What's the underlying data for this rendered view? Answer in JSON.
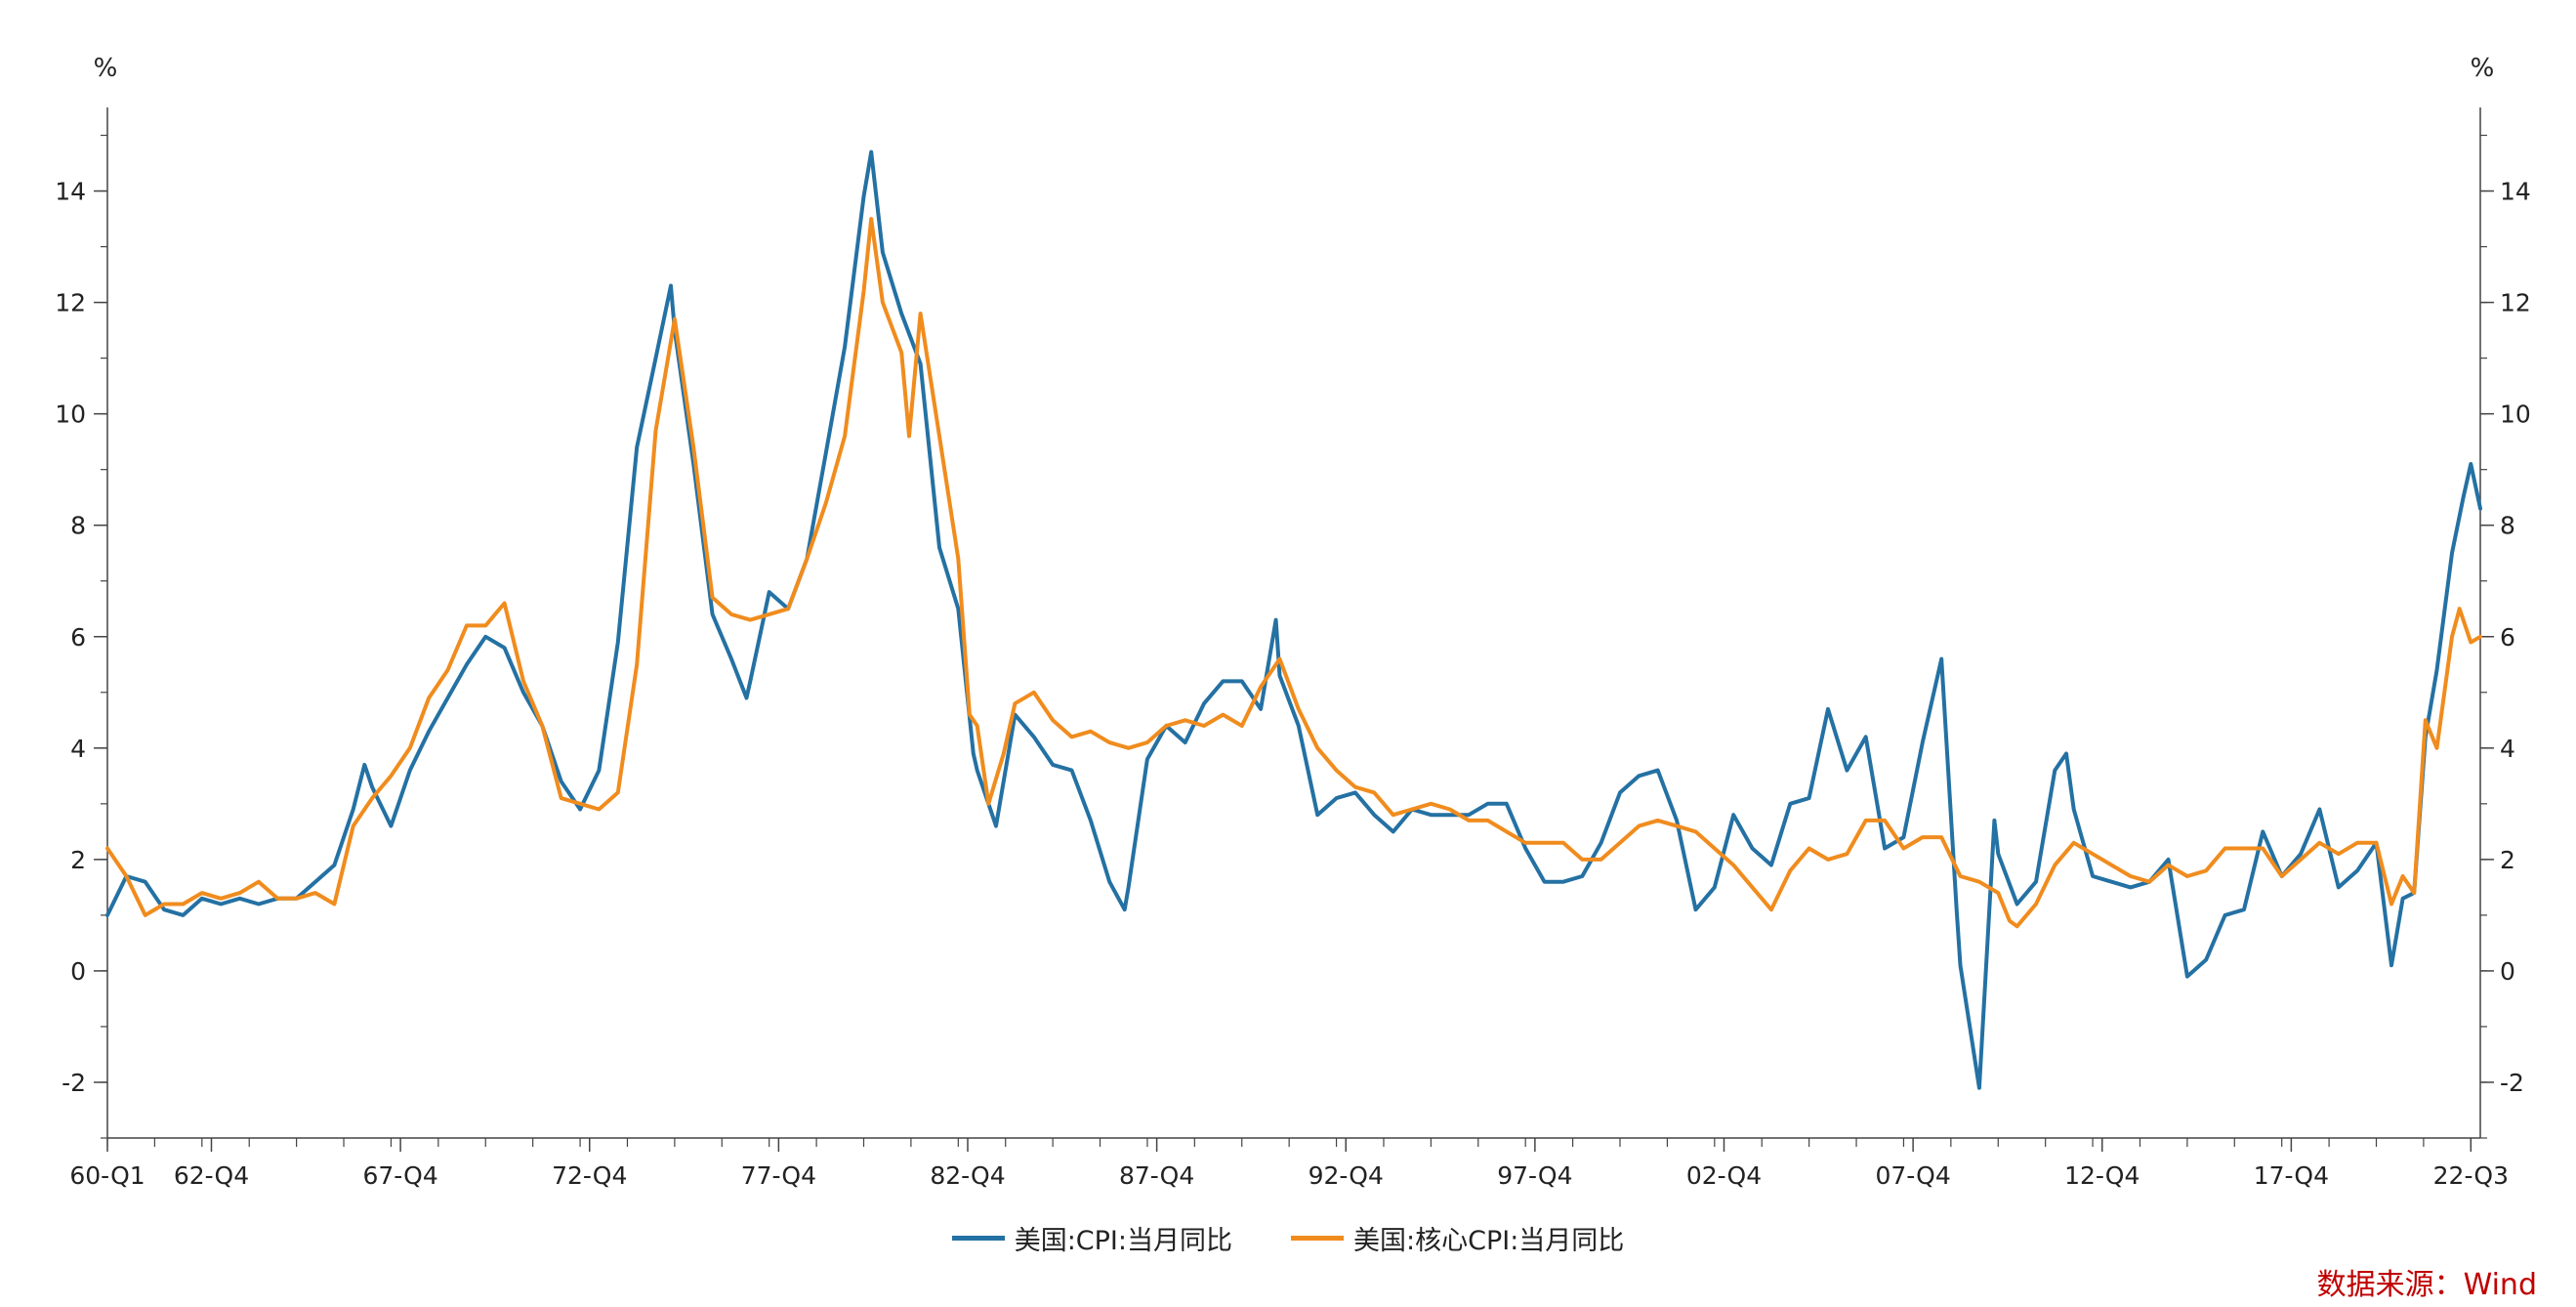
{
  "chart_data": {
    "type": "line",
    "title": "",
    "y_unit_left": "%",
    "y_unit_right": "%",
    "ylim": [
      -3,
      15.5
    ],
    "y_ticks": [
      -2,
      0,
      2,
      4,
      6,
      8,
      10,
      12,
      14
    ],
    "x_range": [
      1960.0,
      2022.75
    ],
    "x_tick_labels": [
      {
        "label": "60-Q1",
        "x": 1960.0
      },
      {
        "label": "62-Q4",
        "x": 1962.75
      },
      {
        "label": "67-Q4",
        "x": 1967.75
      },
      {
        "label": "72-Q4",
        "x": 1972.75
      },
      {
        "label": "77-Q4",
        "x": 1977.75
      },
      {
        "label": "82-Q4",
        "x": 1982.75
      },
      {
        "label": "87-Q4",
        "x": 1987.75
      },
      {
        "label": "92-Q4",
        "x": 1992.75
      },
      {
        "label": "97-Q4",
        "x": 1997.75
      },
      {
        "label": "02-Q4",
        "x": 2002.75
      },
      {
        "label": "07-Q4",
        "x": 2007.75
      },
      {
        "label": "12-Q4",
        "x": 2012.75
      },
      {
        "label": "17-Q4",
        "x": 2017.75
      },
      {
        "label": "22-Q3",
        "x": 2022.5
      }
    ],
    "series": [
      {
        "name": "美国:CPI:当月同比",
        "color": "#2471a3",
        "points": [
          [
            1960.0,
            1.0
          ],
          [
            1960.5,
            1.7
          ],
          [
            1961.0,
            1.6
          ],
          [
            1961.5,
            1.1
          ],
          [
            1962.0,
            1.0
          ],
          [
            1962.5,
            1.3
          ],
          [
            1963.0,
            1.2
          ],
          [
            1963.5,
            1.3
          ],
          [
            1964.0,
            1.2
          ],
          [
            1964.5,
            1.3
          ],
          [
            1965.0,
            1.3
          ],
          [
            1965.5,
            1.6
          ],
          [
            1966.0,
            1.9
          ],
          [
            1966.5,
            2.9
          ],
          [
            1966.8,
            3.7
          ],
          [
            1967.0,
            3.3
          ],
          [
            1967.5,
            2.6
          ],
          [
            1968.0,
            3.6
          ],
          [
            1968.5,
            4.3
          ],
          [
            1969.0,
            4.9
          ],
          [
            1969.5,
            5.5
          ],
          [
            1970.0,
            6.0
          ],
          [
            1970.5,
            5.8
          ],
          [
            1971.0,
            5.0
          ],
          [
            1971.5,
            4.4
          ],
          [
            1972.0,
            3.4
          ],
          [
            1972.5,
            2.9
          ],
          [
            1973.0,
            3.6
          ],
          [
            1973.5,
            5.9
          ],
          [
            1974.0,
            9.4
          ],
          [
            1974.5,
            11.0
          ],
          [
            1974.9,
            12.3
          ],
          [
            1975.0,
            11.5
          ],
          [
            1975.5,
            9.1
          ],
          [
            1976.0,
            6.4
          ],
          [
            1976.5,
            5.6
          ],
          [
            1976.9,
            4.9
          ],
          [
            1977.0,
            5.2
          ],
          [
            1977.5,
            6.8
          ],
          [
            1978.0,
            6.5
          ],
          [
            1978.5,
            7.4
          ],
          [
            1979.0,
            9.3
          ],
          [
            1979.5,
            11.2
          ],
          [
            1980.0,
            13.9
          ],
          [
            1980.2,
            14.7
          ],
          [
            1980.5,
            12.9
          ],
          [
            1981.0,
            11.8
          ],
          [
            1981.5,
            10.9
          ],
          [
            1982.0,
            7.6
          ],
          [
            1982.5,
            6.5
          ],
          [
            1982.9,
            3.9
          ],
          [
            1983.0,
            3.6
          ],
          [
            1983.5,
            2.6
          ],
          [
            1984.0,
            4.6
          ],
          [
            1984.5,
            4.2
          ],
          [
            1985.0,
            3.7
          ],
          [
            1985.5,
            3.6
          ],
          [
            1986.0,
            2.7
          ],
          [
            1986.5,
            1.6
          ],
          [
            1986.9,
            1.1
          ],
          [
            1987.0,
            1.5
          ],
          [
            1987.5,
            3.8
          ],
          [
            1988.0,
            4.4
          ],
          [
            1988.5,
            4.1
          ],
          [
            1989.0,
            4.8
          ],
          [
            1989.5,
            5.2
          ],
          [
            1990.0,
            5.2
          ],
          [
            1990.5,
            4.7
          ],
          [
            1990.9,
            6.3
          ],
          [
            1991.0,
            5.3
          ],
          [
            1991.5,
            4.4
          ],
          [
            1992.0,
            2.8
          ],
          [
            1992.5,
            3.1
          ],
          [
            1993.0,
            3.2
          ],
          [
            1993.5,
            2.8
          ],
          [
            1994.0,
            2.5
          ],
          [
            1994.5,
            2.9
          ],
          [
            1995.0,
            2.8
          ],
          [
            1995.5,
            2.8
          ],
          [
            1996.0,
            2.8
          ],
          [
            1996.5,
            3.0
          ],
          [
            1997.0,
            3.0
          ],
          [
            1997.5,
            2.2
          ],
          [
            1998.0,
            1.6
          ],
          [
            1998.5,
            1.6
          ],
          [
            1999.0,
            1.7
          ],
          [
            1999.5,
            2.3
          ],
          [
            2000.0,
            3.2
          ],
          [
            2000.5,
            3.5
          ],
          [
            2001.0,
            3.6
          ],
          [
            2001.5,
            2.7
          ],
          [
            2002.0,
            1.1
          ],
          [
            2002.5,
            1.5
          ],
          [
            2003.0,
            2.8
          ],
          [
            2003.5,
            2.2
          ],
          [
            2004.0,
            1.9
          ],
          [
            2004.5,
            3.0
          ],
          [
            2005.0,
            3.1
          ],
          [
            2005.5,
            4.7
          ],
          [
            2006.0,
            3.6
          ],
          [
            2006.5,
            4.2
          ],
          [
            2007.0,
            2.2
          ],
          [
            2007.5,
            2.4
          ],
          [
            2008.0,
            4.1
          ],
          [
            2008.5,
            5.6
          ],
          [
            2008.9,
            1.1
          ],
          [
            2009.0,
            0.1
          ],
          [
            2009.5,
            -2.1
          ],
          [
            2009.9,
            2.7
          ],
          [
            2010.0,
            2.1
          ],
          [
            2010.5,
            1.2
          ],
          [
            2011.0,
            1.6
          ],
          [
            2011.5,
            3.6
          ],
          [
            2011.8,
            3.9
          ],
          [
            2012.0,
            2.9
          ],
          [
            2012.5,
            1.7
          ],
          [
            2013.0,
            1.6
          ],
          [
            2013.5,
            1.5
          ],
          [
            2014.0,
            1.6
          ],
          [
            2014.5,
            2.0
          ],
          [
            2015.0,
            -0.1
          ],
          [
            2015.5,
            0.2
          ],
          [
            2016.0,
            1.0
          ],
          [
            2016.5,
            1.1
          ],
          [
            2017.0,
            2.5
          ],
          [
            2017.5,
            1.7
          ],
          [
            2018.0,
            2.1
          ],
          [
            2018.5,
            2.9
          ],
          [
            2019.0,
            1.5
          ],
          [
            2019.5,
            1.8
          ],
          [
            2020.0,
            2.3
          ],
          [
            2020.4,
            0.1
          ],
          [
            2020.7,
            1.3
          ],
          [
            2021.0,
            1.4
          ],
          [
            2021.3,
            4.2
          ],
          [
            2021.6,
            5.4
          ],
          [
            2022.0,
            7.5
          ],
          [
            2022.3,
            8.5
          ],
          [
            2022.5,
            9.1
          ],
          [
            2022.75,
            8.3
          ]
        ]
      },
      {
        "name": "美国:核心CPI:当月同比",
        "color": "#f08c1e",
        "points": [
          [
            1960.0,
            2.2
          ],
          [
            1960.5,
            1.7
          ],
          [
            1961.0,
            1.0
          ],
          [
            1961.5,
            1.2
          ],
          [
            1962.0,
            1.2
          ],
          [
            1962.5,
            1.4
          ],
          [
            1963.0,
            1.3
          ],
          [
            1963.5,
            1.4
          ],
          [
            1964.0,
            1.6
          ],
          [
            1964.5,
            1.3
          ],
          [
            1965.0,
            1.3
          ],
          [
            1965.5,
            1.4
          ],
          [
            1966.0,
            1.2
          ],
          [
            1966.5,
            2.6
          ],
          [
            1967.0,
            3.1
          ],
          [
            1967.5,
            3.5
          ],
          [
            1968.0,
            4.0
          ],
          [
            1968.5,
            4.9
          ],
          [
            1969.0,
            5.4
          ],
          [
            1969.5,
            6.2
          ],
          [
            1970.0,
            6.2
          ],
          [
            1970.5,
            6.6
          ],
          [
            1971.0,
            5.2
          ],
          [
            1971.5,
            4.4
          ],
          [
            1972.0,
            3.1
          ],
          [
            1972.5,
            3.0
          ],
          [
            1973.0,
            2.9
          ],
          [
            1973.5,
            3.2
          ],
          [
            1974.0,
            5.5
          ],
          [
            1974.5,
            9.7
          ],
          [
            1975.0,
            11.7
          ],
          [
            1975.5,
            9.4
          ],
          [
            1976.0,
            6.7
          ],
          [
            1976.5,
            6.4
          ],
          [
            1977.0,
            6.3
          ],
          [
            1977.5,
            6.4
          ],
          [
            1978.0,
            6.5
          ],
          [
            1978.5,
            7.4
          ],
          [
            1979.0,
            8.4
          ],
          [
            1979.5,
            9.6
          ],
          [
            1980.0,
            12.2
          ],
          [
            1980.2,
            13.5
          ],
          [
            1980.5,
            12.0
          ],
          [
            1981.0,
            11.1
          ],
          [
            1981.2,
            9.6
          ],
          [
            1981.5,
            11.8
          ],
          [
            1982.0,
            9.6
          ],
          [
            1982.5,
            7.4
          ],
          [
            1982.8,
            4.6
          ],
          [
            1983.0,
            4.4
          ],
          [
            1983.3,
            3.0
          ],
          [
            1983.7,
            3.9
          ],
          [
            1984.0,
            4.8
          ],
          [
            1984.5,
            5.0
          ],
          [
            1985.0,
            4.5
          ],
          [
            1985.5,
            4.2
          ],
          [
            1986.0,
            4.3
          ],
          [
            1986.5,
            4.1
          ],
          [
            1987.0,
            4.0
          ],
          [
            1987.5,
            4.1
          ],
          [
            1988.0,
            4.4
          ],
          [
            1988.5,
            4.5
          ],
          [
            1989.0,
            4.4
          ],
          [
            1989.5,
            4.6
          ],
          [
            1990.0,
            4.4
          ],
          [
            1990.5,
            5.1
          ],
          [
            1991.0,
            5.6
          ],
          [
            1991.5,
            4.7
          ],
          [
            1992.0,
            4.0
          ],
          [
            1992.5,
            3.6
          ],
          [
            1993.0,
            3.3
          ],
          [
            1993.5,
            3.2
          ],
          [
            1994.0,
            2.8
          ],
          [
            1994.5,
            2.9
          ],
          [
            1995.0,
            3.0
          ],
          [
            1995.5,
            2.9
          ],
          [
            1996.0,
            2.7
          ],
          [
            1996.5,
            2.7
          ],
          [
            1997.0,
            2.5
          ],
          [
            1997.5,
            2.3
          ],
          [
            1998.0,
            2.3
          ],
          [
            1998.5,
            2.3
          ],
          [
            1999.0,
            2.0
          ],
          [
            1999.5,
            2.0
          ],
          [
            2000.0,
            2.3
          ],
          [
            2000.5,
            2.6
          ],
          [
            2001.0,
            2.7
          ],
          [
            2001.5,
            2.6
          ],
          [
            2002.0,
            2.5
          ],
          [
            2002.5,
            2.2
          ],
          [
            2003.0,
            1.9
          ],
          [
            2003.5,
            1.5
          ],
          [
            2004.0,
            1.1
          ],
          [
            2004.5,
            1.8
          ],
          [
            2005.0,
            2.2
          ],
          [
            2005.5,
            2.0
          ],
          [
            2006.0,
            2.1
          ],
          [
            2006.5,
            2.7
          ],
          [
            2007.0,
            2.7
          ],
          [
            2007.5,
            2.2
          ],
          [
            2008.0,
            2.4
          ],
          [
            2008.5,
            2.4
          ],
          [
            2009.0,
            1.7
          ],
          [
            2009.5,
            1.6
          ],
          [
            2010.0,
            1.4
          ],
          [
            2010.3,
            0.9
          ],
          [
            2010.5,
            0.8
          ],
          [
            2011.0,
            1.2
          ],
          [
            2011.5,
            1.9
          ],
          [
            2012.0,
            2.3
          ],
          [
            2012.5,
            2.1
          ],
          [
            2013.0,
            1.9
          ],
          [
            2013.5,
            1.7
          ],
          [
            2014.0,
            1.6
          ],
          [
            2014.5,
            1.9
          ],
          [
            2015.0,
            1.7
          ],
          [
            2015.5,
            1.8
          ],
          [
            2016.0,
            2.2
          ],
          [
            2016.5,
            2.2
          ],
          [
            2017.0,
            2.2
          ],
          [
            2017.5,
            1.7
          ],
          [
            2018.0,
            2.0
          ],
          [
            2018.5,
            2.3
          ],
          [
            2019.0,
            2.1
          ],
          [
            2019.5,
            2.3
          ],
          [
            2020.0,
            2.3
          ],
          [
            2020.4,
            1.2
          ],
          [
            2020.7,
            1.7
          ],
          [
            2021.0,
            1.4
          ],
          [
            2021.3,
            4.5
          ],
          [
            2021.6,
            4.0
          ],
          [
            2022.0,
            6.0
          ],
          [
            2022.2,
            6.5
          ],
          [
            2022.5,
            5.9
          ],
          [
            2022.75,
            6.0
          ]
        ]
      }
    ],
    "legend_position": "bottom-center",
    "grid": false
  },
  "source_note": "数据来源：Wind"
}
